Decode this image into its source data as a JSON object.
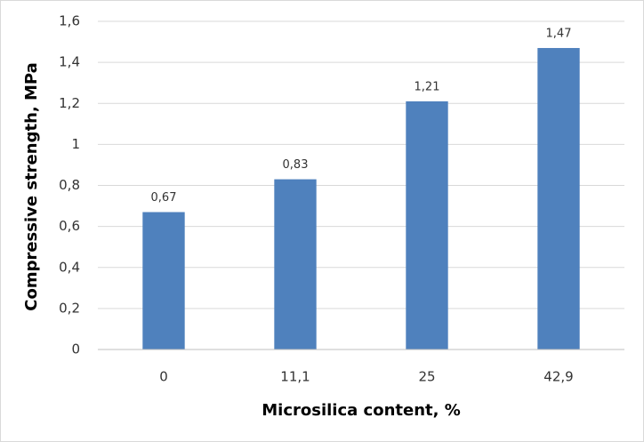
{
  "chart_data": {
    "type": "bar",
    "x_label": "Microsilica content, %",
    "y_label": "Compressive strength, MPa",
    "categories": [
      "0",
      "11,1",
      "25",
      "42,9"
    ],
    "values": [
      0.67,
      0.83,
      1.21,
      1.47
    ],
    "value_labels": [
      "0,67",
      "0,83",
      "1,21",
      "1,47"
    ],
    "color": "#4f81bd",
    "ylim": [
      0,
      1.6
    ],
    "yticks": [
      0,
      {
        "value": 0.2,
        "label": "0,2"
      },
      {
        "value": 0.4,
        "label": "0,4"
      },
      {
        "value": 0.6,
        "label": "0,6"
      },
      {
        "value": 0.8,
        "label": "0,8"
      },
      1,
      {
        "value": 1.2,
        "label": "1,2"
      },
      {
        "value": 1.4,
        "label": "1,4"
      },
      {
        "value": 1.6,
        "label": "1,6"
      }
    ],
    "grid": true
  }
}
